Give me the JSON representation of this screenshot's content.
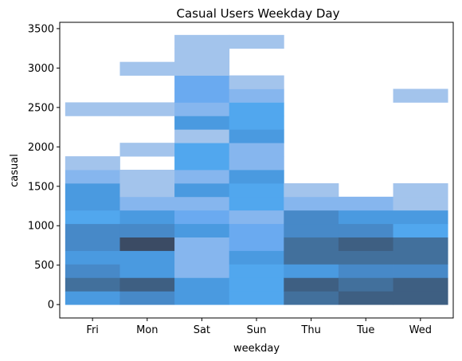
{
  "chart_data": {
    "type": "heatmap",
    "title": "Casual Users Weekday Day",
    "xlabel": "weekday",
    "ylabel": "casual",
    "categories": [
      "Fri",
      "Mon",
      "Sat",
      "Sun",
      "Thu",
      "Tue",
      "Wed"
    ],
    "y_ticks": [
      0,
      500,
      1000,
      1500,
      2000,
      2500,
      3000,
      3500
    ],
    "ylim": [
      -170,
      3580
    ],
    "bin_width": 171,
    "grid": false,
    "legend": "none",
    "base_color": "#1f77b4",
    "colors": {
      "lightest": "#a3c4ec",
      "light": "#86b6ee",
      "mid_light": "#6aaaf0",
      "bright": "#51a7ee",
      "mid": "#4a9ae0",
      "mid_dark": "#4789c8",
      "dark": "#42709c",
      "darker": "#3e5f82",
      "darkest": "#3b4b64"
    },
    "series": [
      {
        "name": "Fri",
        "bins": [
          {
            "from": 0,
            "to": 171,
            "shade": "mid"
          },
          {
            "from": 171,
            "to": 342,
            "shade": "dark"
          },
          {
            "from": 342,
            "to": 513,
            "shade": "mid_dark"
          },
          {
            "from": 513,
            "to": 684,
            "shade": "mid"
          },
          {
            "from": 684,
            "to": 855,
            "shade": "mid_dark"
          },
          {
            "from": 855,
            "to": 1026,
            "shade": "mid_dark"
          },
          {
            "from": 1026,
            "to": 1197,
            "shade": "bright"
          },
          {
            "from": 1197,
            "to": 1368,
            "shade": "mid"
          },
          {
            "from": 1368,
            "to": 1539,
            "shade": "mid"
          },
          {
            "from": 1539,
            "to": 1710,
            "shade": "light"
          },
          {
            "from": 1710,
            "to": 1881,
            "shade": "lightest"
          },
          {
            "from": 2394,
            "to": 2565,
            "shade": "lightest"
          }
        ]
      },
      {
        "name": "Mon",
        "bins": [
          {
            "from": 0,
            "to": 171,
            "shade": "mid_dark"
          },
          {
            "from": 171,
            "to": 342,
            "shade": "darker"
          },
          {
            "from": 342,
            "to": 513,
            "shade": "mid"
          },
          {
            "from": 513,
            "to": 684,
            "shade": "mid"
          },
          {
            "from": 684,
            "to": 855,
            "shade": "darkest"
          },
          {
            "from": 855,
            "to": 1026,
            "shade": "mid_dark"
          },
          {
            "from": 1026,
            "to": 1197,
            "shade": "mid"
          },
          {
            "from": 1197,
            "to": 1368,
            "shade": "light"
          },
          {
            "from": 1368,
            "to": 1539,
            "shade": "lightest"
          },
          {
            "from": 1539,
            "to": 1710,
            "shade": "lightest"
          },
          {
            "from": 1881,
            "to": 2052,
            "shade": "lightest"
          },
          {
            "from": 2394,
            "to": 2565,
            "shade": "lightest"
          },
          {
            "from": 2907,
            "to": 3078,
            "shade": "lightest"
          }
        ]
      },
      {
        "name": "Sat",
        "bins": [
          {
            "from": 0,
            "to": 171,
            "shade": "mid"
          },
          {
            "from": 171,
            "to": 342,
            "shade": "mid"
          },
          {
            "from": 342,
            "to": 513,
            "shade": "light"
          },
          {
            "from": 513,
            "to": 684,
            "shade": "light"
          },
          {
            "from": 684,
            "to": 855,
            "shade": "light"
          },
          {
            "from": 855,
            "to": 1026,
            "shade": "mid"
          },
          {
            "from": 1026,
            "to": 1197,
            "shade": "mid_light"
          },
          {
            "from": 1197,
            "to": 1368,
            "shade": "light"
          },
          {
            "from": 1368,
            "to": 1539,
            "shade": "mid"
          },
          {
            "from": 1539,
            "to": 1710,
            "shade": "light"
          },
          {
            "from": 1710,
            "to": 1881,
            "shade": "bright"
          },
          {
            "from": 1881,
            "to": 2052,
            "shade": "bright"
          },
          {
            "from": 2052,
            "to": 2223,
            "shade": "lightest"
          },
          {
            "from": 2223,
            "to": 2394,
            "shade": "mid"
          },
          {
            "from": 2394,
            "to": 2565,
            "shade": "light"
          },
          {
            "from": 2565,
            "to": 2736,
            "shade": "mid_light"
          },
          {
            "from": 2736,
            "to": 2907,
            "shade": "mid_light"
          },
          {
            "from": 2907,
            "to": 3078,
            "shade": "lightest"
          },
          {
            "from": 3078,
            "to": 3249,
            "shade": "lightest"
          },
          {
            "from": 3249,
            "to": 3420,
            "shade": "lightest"
          }
        ]
      },
      {
        "name": "Sun",
        "bins": [
          {
            "from": 0,
            "to": 171,
            "shade": "bright"
          },
          {
            "from": 171,
            "to": 342,
            "shade": "bright"
          },
          {
            "from": 342,
            "to": 513,
            "shade": "bright"
          },
          {
            "from": 513,
            "to": 684,
            "shade": "mid"
          },
          {
            "from": 684,
            "to": 855,
            "shade": "mid_light"
          },
          {
            "from": 855,
            "to": 1026,
            "shade": "mid_light"
          },
          {
            "from": 1026,
            "to": 1197,
            "shade": "light"
          },
          {
            "from": 1197,
            "to": 1368,
            "shade": "bright"
          },
          {
            "from": 1368,
            "to": 1539,
            "shade": "bright"
          },
          {
            "from": 1539,
            "to": 1710,
            "shade": "mid"
          },
          {
            "from": 1710,
            "to": 1881,
            "shade": "light"
          },
          {
            "from": 1881,
            "to": 2052,
            "shade": "light"
          },
          {
            "from": 2052,
            "to": 2223,
            "shade": "mid"
          },
          {
            "from": 2223,
            "to": 2394,
            "shade": "bright"
          },
          {
            "from": 2394,
            "to": 2565,
            "shade": "bright"
          },
          {
            "from": 2565,
            "to": 2736,
            "shade": "light"
          },
          {
            "from": 2736,
            "to": 2907,
            "shade": "lightest"
          },
          {
            "from": 3249,
            "to": 3420,
            "shade": "lightest"
          }
        ]
      },
      {
        "name": "Thu",
        "bins": [
          {
            "from": 0,
            "to": 171,
            "shade": "dark"
          },
          {
            "from": 171,
            "to": 342,
            "shade": "darker"
          },
          {
            "from": 342,
            "to": 513,
            "shade": "mid"
          },
          {
            "from": 513,
            "to": 684,
            "shade": "dark"
          },
          {
            "from": 684,
            "to": 855,
            "shade": "dark"
          },
          {
            "from": 855,
            "to": 1026,
            "shade": "mid_dark"
          },
          {
            "from": 1026,
            "to": 1197,
            "shade": "mid_dark"
          },
          {
            "from": 1197,
            "to": 1368,
            "shade": "light"
          },
          {
            "from": 1368,
            "to": 1539,
            "shade": "lightest"
          }
        ]
      },
      {
        "name": "Tue",
        "bins": [
          {
            "from": 0,
            "to": 171,
            "shade": "darker"
          },
          {
            "from": 171,
            "to": 342,
            "shade": "dark"
          },
          {
            "from": 342,
            "to": 513,
            "shade": "mid_dark"
          },
          {
            "from": 513,
            "to": 684,
            "shade": "dark"
          },
          {
            "from": 684,
            "to": 855,
            "shade": "darker"
          },
          {
            "from": 855,
            "to": 1026,
            "shade": "mid_dark"
          },
          {
            "from": 1026,
            "to": 1197,
            "shade": "mid"
          },
          {
            "from": 1197,
            "to": 1368,
            "shade": "light"
          }
        ]
      },
      {
        "name": "Wed",
        "bins": [
          {
            "from": 0,
            "to": 171,
            "shade": "darker"
          },
          {
            "from": 171,
            "to": 342,
            "shade": "darker"
          },
          {
            "from": 342,
            "to": 513,
            "shade": "mid_dark"
          },
          {
            "from": 513,
            "to": 684,
            "shade": "dark"
          },
          {
            "from": 684,
            "to": 855,
            "shade": "dark"
          },
          {
            "from": 855,
            "to": 1026,
            "shade": "bright"
          },
          {
            "from": 1026,
            "to": 1197,
            "shade": "mid"
          },
          {
            "from": 1197,
            "to": 1368,
            "shade": "lightest"
          },
          {
            "from": 1368,
            "to": 1539,
            "shade": "lightest"
          },
          {
            "from": 2565,
            "to": 2736,
            "shade": "lightest"
          }
        ]
      }
    ]
  }
}
